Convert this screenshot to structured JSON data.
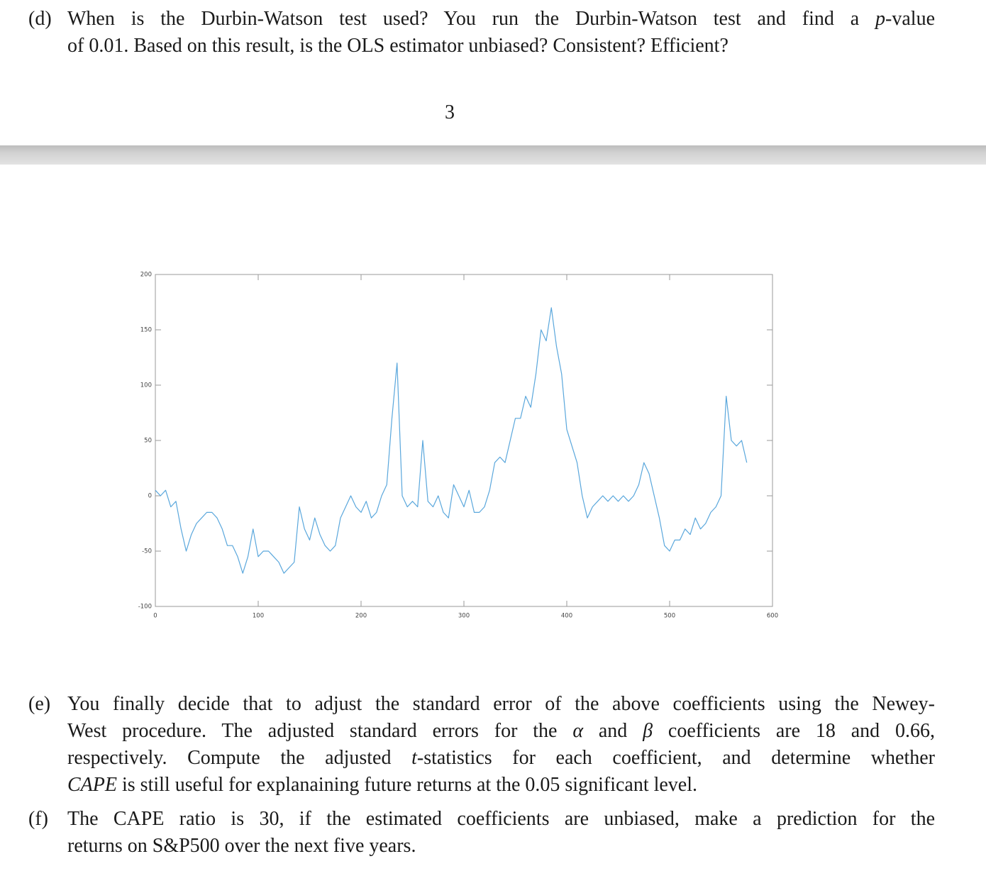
{
  "d": {
    "label": "(d)",
    "lines": [
      [
        "When is the Durbin-Watson test used? You run the Durbin-Watson test and find a ",
        {
          "italic": "p"
        },
        "-value"
      ],
      [
        "of 0.01. Based on this result, is the OLS estimator unbiased? Consistent? Efficient?"
      ]
    ]
  },
  "page_number": "3",
  "chart_data": {
    "type": "line",
    "xlim": [
      0,
      600
    ],
    "xticks": [
      0,
      100,
      200,
      300,
      400,
      500,
      600
    ],
    "ylim": [
      -100,
      200
    ],
    "yticks": [
      -100,
      -50,
      0,
      50,
      100,
      150,
      200
    ],
    "color": "#5aa7dc",
    "x": [
      0,
      5,
      10,
      15,
      20,
      25,
      30,
      35,
      40,
      45,
      50,
      55,
      60,
      65,
      70,
      75,
      80,
      85,
      90,
      95,
      100,
      105,
      110,
      115,
      120,
      125,
      130,
      135,
      140,
      145,
      150,
      155,
      160,
      165,
      170,
      175,
      180,
      185,
      190,
      195,
      200,
      205,
      210,
      215,
      220,
      225,
      230,
      235,
      240,
      245,
      250,
      255,
      260,
      265,
      270,
      275,
      280,
      285,
      290,
      295,
      300,
      305,
      310,
      315,
      320,
      325,
      330,
      335,
      340,
      345,
      350,
      355,
      360,
      365,
      370,
      375,
      380,
      385,
      390,
      395,
      400,
      405,
      410,
      415,
      420,
      425,
      430,
      435,
      440,
      445,
      450,
      455,
      460,
      465,
      470,
      475,
      480,
      485,
      490,
      495,
      500,
      505,
      510,
      515,
      520,
      525,
      530,
      535,
      540,
      545,
      550,
      555,
      560,
      565,
      570,
      575
    ],
    "values": [
      5,
      0,
      5,
      -10,
      -5,
      -30,
      -50,
      -35,
      -25,
      -20,
      -15,
      -15,
      -20,
      -30,
      -45,
      -45,
      -55,
      -70,
      -55,
      -30,
      -55,
      -50,
      -50,
      -55,
      -60,
      -70,
      -65,
      -60,
      -10,
      -30,
      -40,
      -20,
      -35,
      -45,
      -50,
      -45,
      -20,
      -10,
      0,
      -10,
      -15,
      -5,
      -20,
      -15,
      0,
      10,
      70,
      120,
      0,
      -10,
      -5,
      -10,
      50,
      -5,
      -10,
      0,
      -15,
      -20,
      10,
      0,
      -10,
      5,
      -15,
      -15,
      -10,
      5,
      30,
      35,
      30,
      50,
      70,
      70,
      90,
      80,
      110,
      150,
      140,
      170,
      135,
      110,
      60,
      45,
      30,
      0,
      -20,
      -10,
      -5,
      0,
      -5,
      0,
      -5,
      0,
      -5,
      0,
      10,
      30,
      20,
      0,
      -20,
      -45,
      -50,
      -40,
      -40,
      -30,
      -35,
      -20,
      -30,
      -25,
      -15,
      -10,
      0,
      90,
      50,
      45,
      50,
      30
    ]
  },
  "e": {
    "label": "(e)",
    "lines": [
      [
        "You finally decide that to adjust the standard error of the above coefficients using the Newey-"
      ],
      [
        "West procedure. The adjusted standard errors for the ",
        {
          "italic": "α"
        },
        " and ",
        {
          "italic": "β"
        },
        " coefficients are 18 and 0.66,"
      ],
      [
        "respectively. Compute the adjusted ",
        {
          "italic": "t"
        },
        "-statistics for each coefficient, and determine whether"
      ],
      [
        {
          "italic": "CAPE"
        },
        " is still useful for explanaining future returns at the 0.05 significant level."
      ]
    ]
  },
  "f": {
    "label": "(f)",
    "lines": [
      [
        "The CAPE ratio is 30, if the estimated coefficients are unbiased, make a prediction for the"
      ],
      [
        "returns on S&P500 over the next five years."
      ]
    ]
  }
}
